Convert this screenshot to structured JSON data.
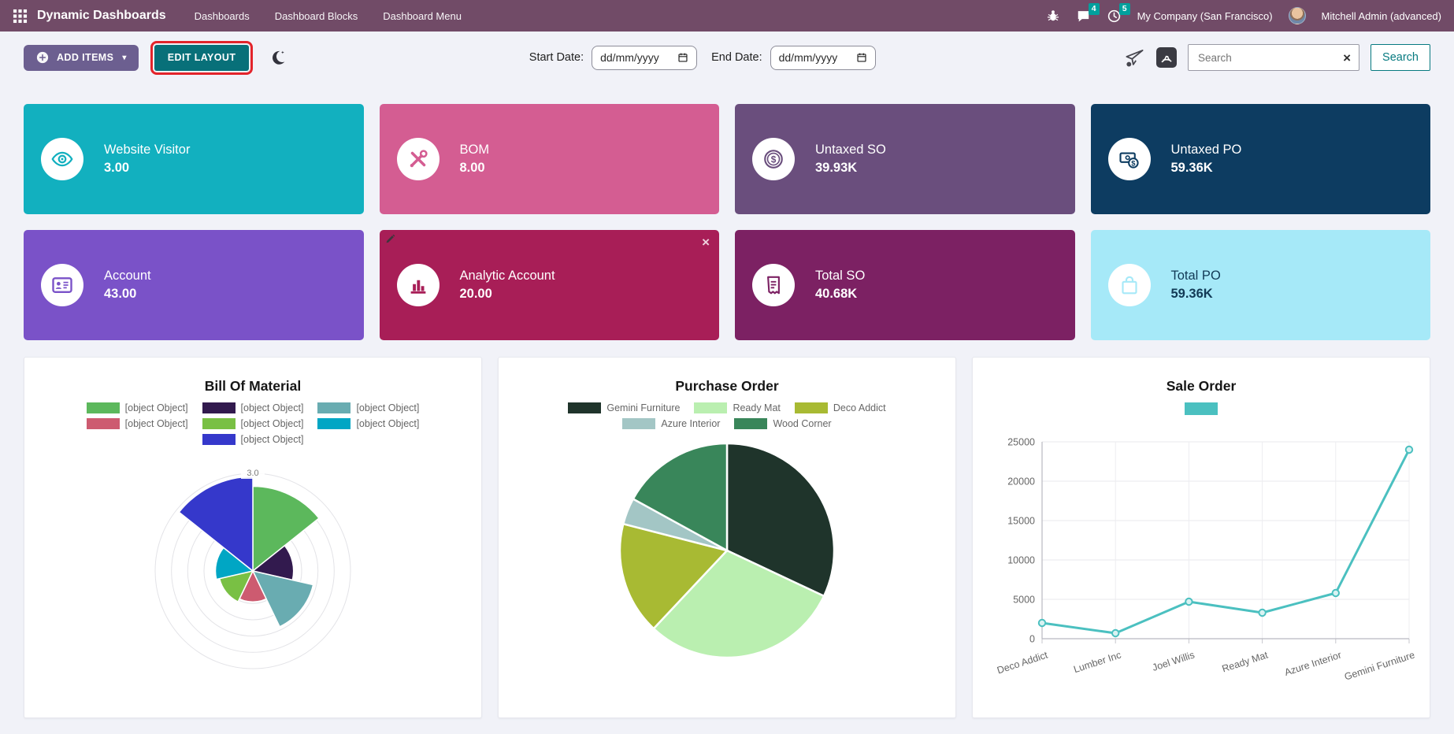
{
  "navbar": {
    "app_title": "Dynamic Dashboards",
    "menu_items": [
      "Dashboards",
      "Dashboard Blocks",
      "Dashboard Menu"
    ],
    "chat_badge": "4",
    "activities_badge": "5",
    "company": "My Company (San Francisco)",
    "user": "Mitchell Admin (advanced)",
    "colors": {
      "bg": "#714B67",
      "badge": "#00a09d"
    }
  },
  "toolbar": {
    "add_items_label": "ADD ITEMS",
    "edit_layout_label": "EDIT LAYOUT",
    "start_date_label": "Start Date:",
    "end_date_label": "End Date:",
    "date_placeholder": "dd/mm/yyyy",
    "search_placeholder": "Search",
    "search_button_label": "Search",
    "annotation_color": "#e3242b"
  },
  "tiles": [
    {
      "label": "Website Visitor",
      "value": "3.00",
      "bg": "#12b0bf",
      "icon": "eye-icon"
    },
    {
      "label": "BOM",
      "value": "8.00",
      "bg": "#d45d92",
      "icon": "tools-icon"
    },
    {
      "label": "Untaxed SO",
      "value": "39.93K",
      "bg": "#6a4e7d",
      "icon": "coin-icon"
    },
    {
      "label": "Untaxed PO",
      "value": "59.36K",
      "bg": "#0d3c61",
      "icon": "cash-icon"
    },
    {
      "label": "Account",
      "value": "43.00",
      "bg": "#7a52c8",
      "icon": "id-card-icon"
    },
    {
      "label": "Analytic Account",
      "value": "20.00",
      "bg": "#a81e57",
      "icon": "bar-chart-icon",
      "closable": true,
      "editable": true
    },
    {
      "label": "Total SO",
      "value": "40.68K",
      "bg": "#7c2163",
      "icon": "receipt-icon"
    },
    {
      "label": "Total PO",
      "value": "59.36K",
      "bg": "#a6e9f8",
      "icon": "bag-icon",
      "text_color": "#123a56"
    }
  ],
  "chart_data": [
    {
      "type": "polarArea",
      "title": "Bill Of Material",
      "legend_position": "top",
      "grid": true,
      "max": 3.0,
      "tick_label": "3.0",
      "series": [
        {
          "label": "[object Object]",
          "value": 2.6,
          "color": "#5cb85c"
        },
        {
          "label": "[object Object]",
          "value": 1.25,
          "color": "#321a4e"
        },
        {
          "label": "[object Object]",
          "value": 1.9,
          "color": "#69acb1"
        },
        {
          "label": "[object Object]",
          "value": 0.95,
          "color": "#cd5b70"
        },
        {
          "label": "[object Object]",
          "value": 1.05,
          "color": "#79c044"
        },
        {
          "label": "[object Object]",
          "value": 1.15,
          "color": "#00a6c4"
        },
        {
          "label": "[object Object]",
          "value": 2.9,
          "color": "#3538cb"
        }
      ]
    },
    {
      "type": "pie",
      "title": "Purchase Order",
      "legend_position": "top",
      "labels": [
        "Gemini Furniture",
        "Ready Mat",
        "Deco Addict",
        "Azure Interior",
        "Wood Corner"
      ],
      "values": [
        32,
        30,
        17,
        4,
        17
      ],
      "colors": [
        "#1f342b",
        "#baefb0",
        "#a8ba33",
        "#a3c6c5",
        "#39865a"
      ]
    },
    {
      "type": "line",
      "title": "Sale Order",
      "legend_position": "top",
      "grid": true,
      "categories": [
        "Deco Addict",
        "Lumber Inc",
        "Joel Willis",
        "Ready Mat",
        "Azure Interior",
        "Gemini Furniture"
      ],
      "values": [
        2000,
        700,
        4700,
        3300,
        5800,
        24000
      ],
      "xlabel": "",
      "ylabel": "",
      "ylim": [
        0,
        25000
      ],
      "yticks": [
        0,
        5000,
        10000,
        15000,
        20000,
        25000
      ],
      "line_color": "#4bc0c0",
      "point_fill": "#d9f2f2"
    }
  ]
}
